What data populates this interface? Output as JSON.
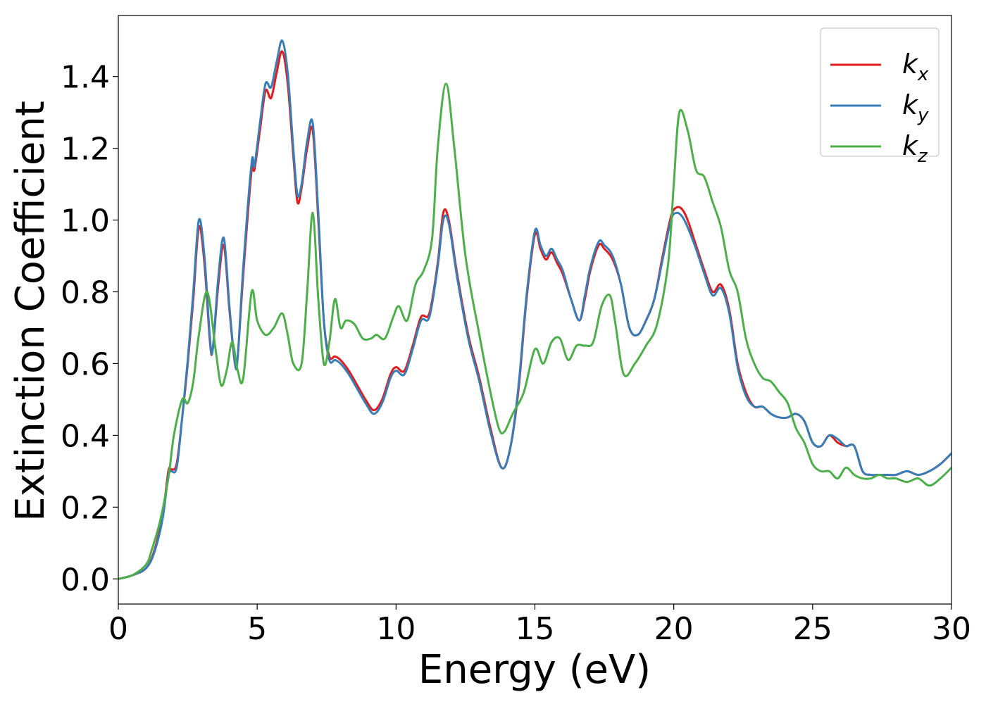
{
  "chart_data": {
    "type": "line",
    "title": "",
    "xlabel": "Energy (eV)",
    "ylabel": "Extinction Coefficient",
    "xlim": [
      0,
      30
    ],
    "ylim": [
      -0.07,
      1.57
    ],
    "xticks": [
      0,
      5,
      10,
      15,
      20,
      25,
      30
    ],
    "xtick_labels": [
      "0",
      "5",
      "10",
      "15",
      "20",
      "25",
      "30"
    ],
    "yticks": [
      0.0,
      0.2,
      0.4,
      0.6,
      0.8,
      1.0,
      1.2,
      1.4
    ],
    "ytick_labels": [
      "0.0",
      "0.2",
      "0.4",
      "0.6",
      "0.8",
      "1.0",
      "1.2",
      "1.4"
    ],
    "grid": false,
    "legend_position": "top-right",
    "series": [
      {
        "name": "k_x",
        "legend_base": "k",
        "legend_sub": "x",
        "color": "#e41a1c",
        "x": [
          0,
          0.5,
          1.0,
          1.3,
          1.6,
          1.8,
          1.9,
          2.1,
          2.3,
          2.5,
          2.7,
          2.9,
          3.1,
          3.3,
          3.4,
          3.6,
          3.8,
          4.0,
          4.2,
          4.3,
          4.5,
          4.8,
          4.9,
          5.1,
          5.3,
          5.5,
          5.7,
          5.9,
          6.1,
          6.3,
          6.45,
          6.6,
          6.8,
          7.0,
          7.2,
          7.4,
          7.6,
          7.8,
          8.0,
          8.3,
          8.6,
          8.9,
          9.2,
          9.5,
          9.8,
          10.0,
          10.3,
          10.6,
          10.9,
          11.2,
          11.5,
          11.7,
          11.9,
          12.2,
          12.6,
          13.0,
          13.4,
          13.8,
          14.1,
          14.4,
          14.7,
          15.0,
          15.2,
          15.4,
          15.6,
          15.8,
          16.0,
          16.3,
          16.6,
          16.8,
          17.0,
          17.3,
          17.5,
          17.8,
          18.1,
          18.4,
          18.7,
          19.0,
          19.3,
          19.6,
          19.9,
          20.1,
          20.3,
          20.5,
          20.8,
          21.1,
          21.4,
          21.7,
          22.0,
          22.3,
          22.6,
          22.9,
          23.2,
          23.5,
          23.8,
          24.1,
          24.4,
          24.7,
          25.0,
          25.3,
          25.6,
          25.9,
          26.2,
          26.5,
          26.8,
          27.1,
          27.4,
          27.7,
          28.0,
          28.4,
          28.8,
          29.2,
          29.6,
          30.0
        ],
        "y": [
          0.0,
          0.01,
          0.03,
          0.08,
          0.18,
          0.3,
          0.305,
          0.32,
          0.45,
          0.6,
          0.78,
          0.98,
          0.88,
          0.66,
          0.64,
          0.82,
          0.93,
          0.75,
          0.6,
          0.62,
          0.85,
          1.14,
          1.14,
          1.25,
          1.36,
          1.34,
          1.41,
          1.47,
          1.38,
          1.18,
          1.05,
          1.09,
          1.2,
          1.25,
          1.0,
          0.72,
          0.62,
          0.62,
          0.61,
          0.58,
          0.54,
          0.5,
          0.47,
          0.5,
          0.57,
          0.59,
          0.58,
          0.65,
          0.73,
          0.74,
          0.88,
          1.02,
          1.0,
          0.85,
          0.68,
          0.56,
          0.42,
          0.31,
          0.36,
          0.52,
          0.78,
          0.96,
          0.92,
          0.89,
          0.91,
          0.88,
          0.85,
          0.78,
          0.72,
          0.78,
          0.86,
          0.93,
          0.92,
          0.89,
          0.82,
          0.7,
          0.68,
          0.72,
          0.78,
          0.9,
          1.01,
          1.035,
          1.03,
          1.0,
          0.93,
          0.86,
          0.8,
          0.82,
          0.75,
          0.6,
          0.52,
          0.48,
          0.48,
          0.46,
          0.45,
          0.45,
          0.46,
          0.44,
          0.38,
          0.37,
          0.4,
          0.38,
          0.37,
          0.37,
          0.3,
          0.29,
          0.29,
          0.29,
          0.29,
          0.3,
          0.29,
          0.3,
          0.32,
          0.35
        ]
      },
      {
        "name": "k_y",
        "legend_base": "k",
        "legend_sub": "y",
        "color": "#377eb8",
        "x": [
          0,
          0.5,
          1.0,
          1.3,
          1.6,
          1.8,
          1.9,
          2.1,
          2.3,
          2.5,
          2.7,
          2.9,
          3.1,
          3.3,
          3.4,
          3.6,
          3.8,
          4.0,
          4.2,
          4.3,
          4.5,
          4.8,
          4.9,
          5.1,
          5.3,
          5.5,
          5.7,
          5.9,
          6.1,
          6.3,
          6.45,
          6.6,
          6.8,
          7.0,
          7.2,
          7.4,
          7.6,
          7.8,
          8.0,
          8.3,
          8.6,
          8.9,
          9.2,
          9.5,
          9.8,
          10.0,
          10.3,
          10.6,
          10.9,
          11.2,
          11.5,
          11.7,
          11.9,
          12.2,
          12.6,
          13.0,
          13.4,
          13.8,
          14.1,
          14.4,
          14.7,
          15.0,
          15.2,
          15.4,
          15.6,
          15.8,
          16.0,
          16.3,
          16.6,
          16.8,
          17.0,
          17.3,
          17.5,
          17.8,
          18.1,
          18.4,
          18.7,
          19.0,
          19.3,
          19.6,
          19.9,
          20.1,
          20.3,
          20.5,
          20.8,
          21.1,
          21.4,
          21.7,
          22.0,
          22.3,
          22.6,
          22.9,
          23.2,
          23.5,
          23.8,
          24.1,
          24.4,
          24.7,
          25.0,
          25.3,
          25.6,
          25.9,
          26.2,
          26.5,
          26.8,
          27.1,
          27.4,
          27.7,
          28.0,
          28.4,
          28.8,
          29.2,
          29.6,
          30.0
        ],
        "y": [
          0.0,
          0.01,
          0.03,
          0.075,
          0.17,
          0.29,
          0.3,
          0.31,
          0.45,
          0.61,
          0.8,
          1.0,
          0.9,
          0.67,
          0.64,
          0.84,
          0.95,
          0.76,
          0.6,
          0.62,
          0.87,
          1.16,
          1.15,
          1.27,
          1.38,
          1.37,
          1.44,
          1.5,
          1.41,
          1.2,
          1.07,
          1.1,
          1.22,
          1.27,
          1.02,
          0.72,
          0.61,
          0.61,
          0.6,
          0.57,
          0.53,
          0.49,
          0.46,
          0.49,
          0.56,
          0.58,
          0.57,
          0.64,
          0.72,
          0.73,
          0.87,
          1.0,
          0.99,
          0.84,
          0.67,
          0.55,
          0.41,
          0.31,
          0.36,
          0.53,
          0.79,
          0.97,
          0.93,
          0.9,
          0.92,
          0.89,
          0.86,
          0.78,
          0.72,
          0.79,
          0.87,
          0.94,
          0.93,
          0.9,
          0.82,
          0.7,
          0.68,
          0.72,
          0.78,
          0.89,
          1.0,
          1.02,
          1.01,
          0.98,
          0.92,
          0.85,
          0.79,
          0.81,
          0.74,
          0.59,
          0.51,
          0.48,
          0.48,
          0.46,
          0.45,
          0.45,
          0.46,
          0.44,
          0.38,
          0.37,
          0.4,
          0.39,
          0.37,
          0.37,
          0.3,
          0.29,
          0.29,
          0.29,
          0.29,
          0.3,
          0.29,
          0.3,
          0.32,
          0.35
        ]
      },
      {
        "name": "k_z",
        "legend_base": "k",
        "legend_sub": "z",
        "color": "#4daf4a",
        "x": [
          0,
          0.5,
          1.0,
          1.2,
          1.5,
          1.8,
          2.0,
          2.3,
          2.5,
          2.7,
          2.9,
          3.2,
          3.5,
          3.7,
          3.9,
          4.1,
          4.3,
          4.5,
          4.8,
          5.0,
          5.3,
          5.6,
          5.9,
          6.1,
          6.3,
          6.6,
          6.8,
          7.0,
          7.2,
          7.4,
          7.6,
          7.8,
          8.0,
          8.2,
          8.5,
          8.8,
          9.1,
          9.3,
          9.6,
          9.9,
          10.1,
          10.4,
          10.7,
          11.0,
          11.3,
          11.5,
          11.8,
          12.1,
          12.5,
          13.0,
          13.4,
          13.7,
          13.9,
          14.2,
          14.6,
          15.0,
          15.3,
          15.6,
          15.9,
          16.2,
          16.5,
          16.8,
          17.1,
          17.4,
          17.7,
          17.9,
          18.2,
          18.6,
          19.0,
          19.4,
          19.8,
          20.0,
          20.2,
          20.5,
          20.8,
          21.1,
          21.4,
          21.7,
          22.0,
          22.3,
          22.6,
          22.9,
          23.2,
          23.5,
          23.8,
          24.1,
          24.4,
          24.7,
          25.0,
          25.3,
          25.6,
          25.9,
          26.2,
          26.5,
          26.8,
          27.1,
          27.4,
          27.7,
          28.0,
          28.4,
          28.8,
          29.2,
          29.6,
          30.0
        ],
        "y": [
          0.0,
          0.01,
          0.04,
          0.08,
          0.16,
          0.28,
          0.4,
          0.5,
          0.49,
          0.55,
          0.68,
          0.8,
          0.64,
          0.54,
          0.58,
          0.66,
          0.58,
          0.56,
          0.8,
          0.72,
          0.68,
          0.7,
          0.74,
          0.68,
          0.6,
          0.6,
          0.8,
          1.02,
          0.78,
          0.6,
          0.66,
          0.78,
          0.7,
          0.72,
          0.71,
          0.67,
          0.67,
          0.68,
          0.67,
          0.73,
          0.76,
          0.72,
          0.82,
          0.86,
          0.95,
          1.2,
          1.38,
          1.2,
          0.9,
          0.68,
          0.52,
          0.42,
          0.41,
          0.46,
          0.52,
          0.64,
          0.6,
          0.66,
          0.67,
          0.61,
          0.65,
          0.65,
          0.66,
          0.76,
          0.79,
          0.71,
          0.57,
          0.6,
          0.65,
          0.71,
          0.88,
          1.1,
          1.3,
          1.25,
          1.14,
          1.12,
          1.05,
          0.98,
          0.86,
          0.8,
          0.67,
          0.6,
          0.56,
          0.55,
          0.52,
          0.49,
          0.42,
          0.38,
          0.32,
          0.3,
          0.3,
          0.28,
          0.31,
          0.29,
          0.28,
          0.28,
          0.29,
          0.28,
          0.28,
          0.27,
          0.28,
          0.26,
          0.28,
          0.31
        ]
      }
    ]
  }
}
